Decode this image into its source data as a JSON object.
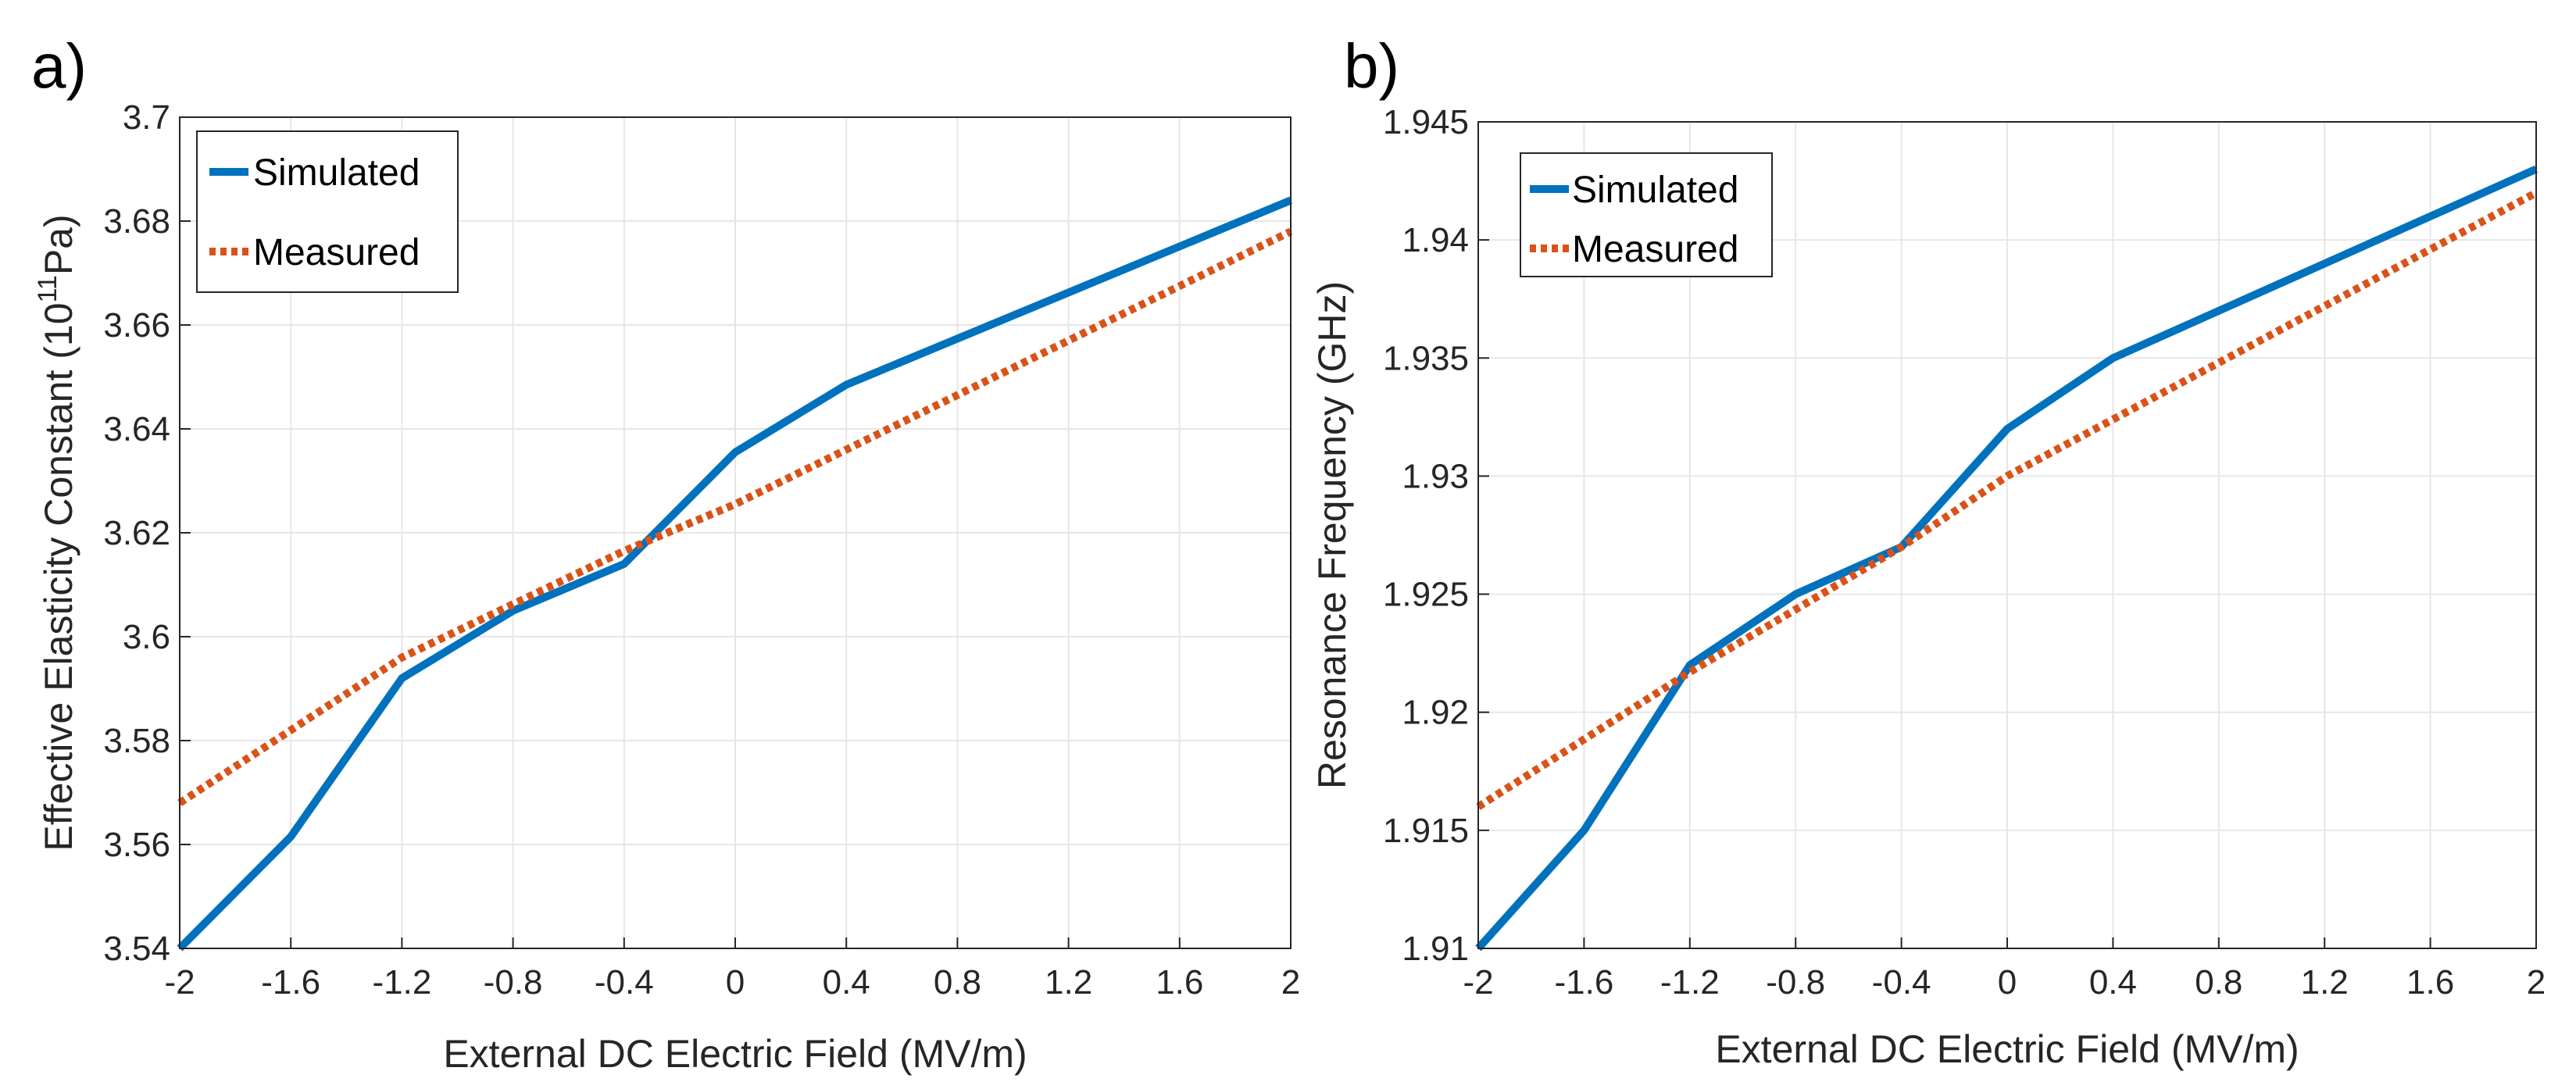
{
  "chart_data": [
    {
      "type": "line",
      "panel_label": "a)",
      "xlabel": "External DC Electric Field (MV/m)",
      "ylabel_main": "Effective Elasticity Constant (10",
      "ylabel_sup": "11",
      "ylabel_tail": "Pa)",
      "xlim": [
        -2,
        2
      ],
      "ylim": [
        3.54,
        3.7
      ],
      "xticks": [
        -2,
        -1.6,
        -1.2,
        -0.8,
        -0.4,
        0,
        0.4,
        0.8,
        1.2,
        1.6,
        2
      ],
      "xtick_labels": [
        "-2",
        "-1.6",
        "-1.2",
        "-0.8",
        "-0.4",
        "0",
        "0.4",
        "0.8",
        "1.2",
        "1.6",
        "2"
      ],
      "yticks": [
        3.54,
        3.56,
        3.58,
        3.6,
        3.62,
        3.64,
        3.66,
        3.68,
        3.7
      ],
      "ytick_labels": [
        "3.54",
        "3.56",
        "3.58",
        "3.6",
        "3.62",
        "3.64",
        "3.66",
        "3.68",
        "3.7"
      ],
      "grid": true,
      "legend_position": "top-left",
      "series": [
        {
          "name": "Simulated",
          "color": "#0072BD",
          "style": "solid",
          "x": [
            -2,
            -1.6,
            -1.2,
            -0.8,
            -0.4,
            0,
            0.4,
            2
          ],
          "y": [
            3.54,
            3.5615,
            3.592,
            3.605,
            3.614,
            3.6355,
            3.6485,
            3.684
          ]
        },
        {
          "name": "Measured",
          "color": "#D95319",
          "style": "dotted",
          "x": [
            -2,
            -1.2,
            -0.4,
            0,
            2
          ],
          "y": [
            3.568,
            3.596,
            3.6165,
            3.6255,
            3.678
          ]
        }
      ]
    },
    {
      "type": "line",
      "panel_label": "b)",
      "xlabel": "External DC Electric Field (MV/m)",
      "ylabel_main": "Resonance Frequency (GHz)",
      "ylabel_sup": "",
      "ylabel_tail": "",
      "xlim": [
        -2,
        2
      ],
      "ylim": [
        1.91,
        1.945
      ],
      "xticks": [
        -2,
        -1.6,
        -1.2,
        -0.8,
        -0.4,
        0,
        0.4,
        0.8,
        1.2,
        1.6,
        2
      ],
      "xtick_labels": [
        "-2",
        "-1.6",
        "-1.2",
        "-0.8",
        "-0.4",
        "0",
        "0.4",
        "0.8",
        "1.2",
        "1.6",
        "2"
      ],
      "yticks": [
        1.91,
        1.915,
        1.92,
        1.925,
        1.93,
        1.935,
        1.94,
        1.945
      ],
      "ytick_labels": [
        "1.91",
        "1.915",
        "1.92",
        "1.925",
        "1.93",
        "1.935",
        "1.94",
        "1.945"
      ],
      "grid": true,
      "legend_position": "top-left",
      "series": [
        {
          "name": "Simulated",
          "color": "#0072BD",
          "style": "solid",
          "x": [
            -2,
            -1.6,
            -1.2,
            -0.8,
            -0.4,
            0,
            0.4,
            2
          ],
          "y": [
            1.91,
            1.915,
            1.922,
            1.925,
            1.927,
            1.932,
            1.935,
            1.943
          ]
        },
        {
          "name": "Measured",
          "color": "#D95319",
          "style": "dotted",
          "x": [
            -2,
            -1.2,
            -0.4,
            0,
            2
          ],
          "y": [
            1.916,
            1.9217,
            1.927,
            1.93,
            1.942
          ]
        }
      ]
    }
  ]
}
